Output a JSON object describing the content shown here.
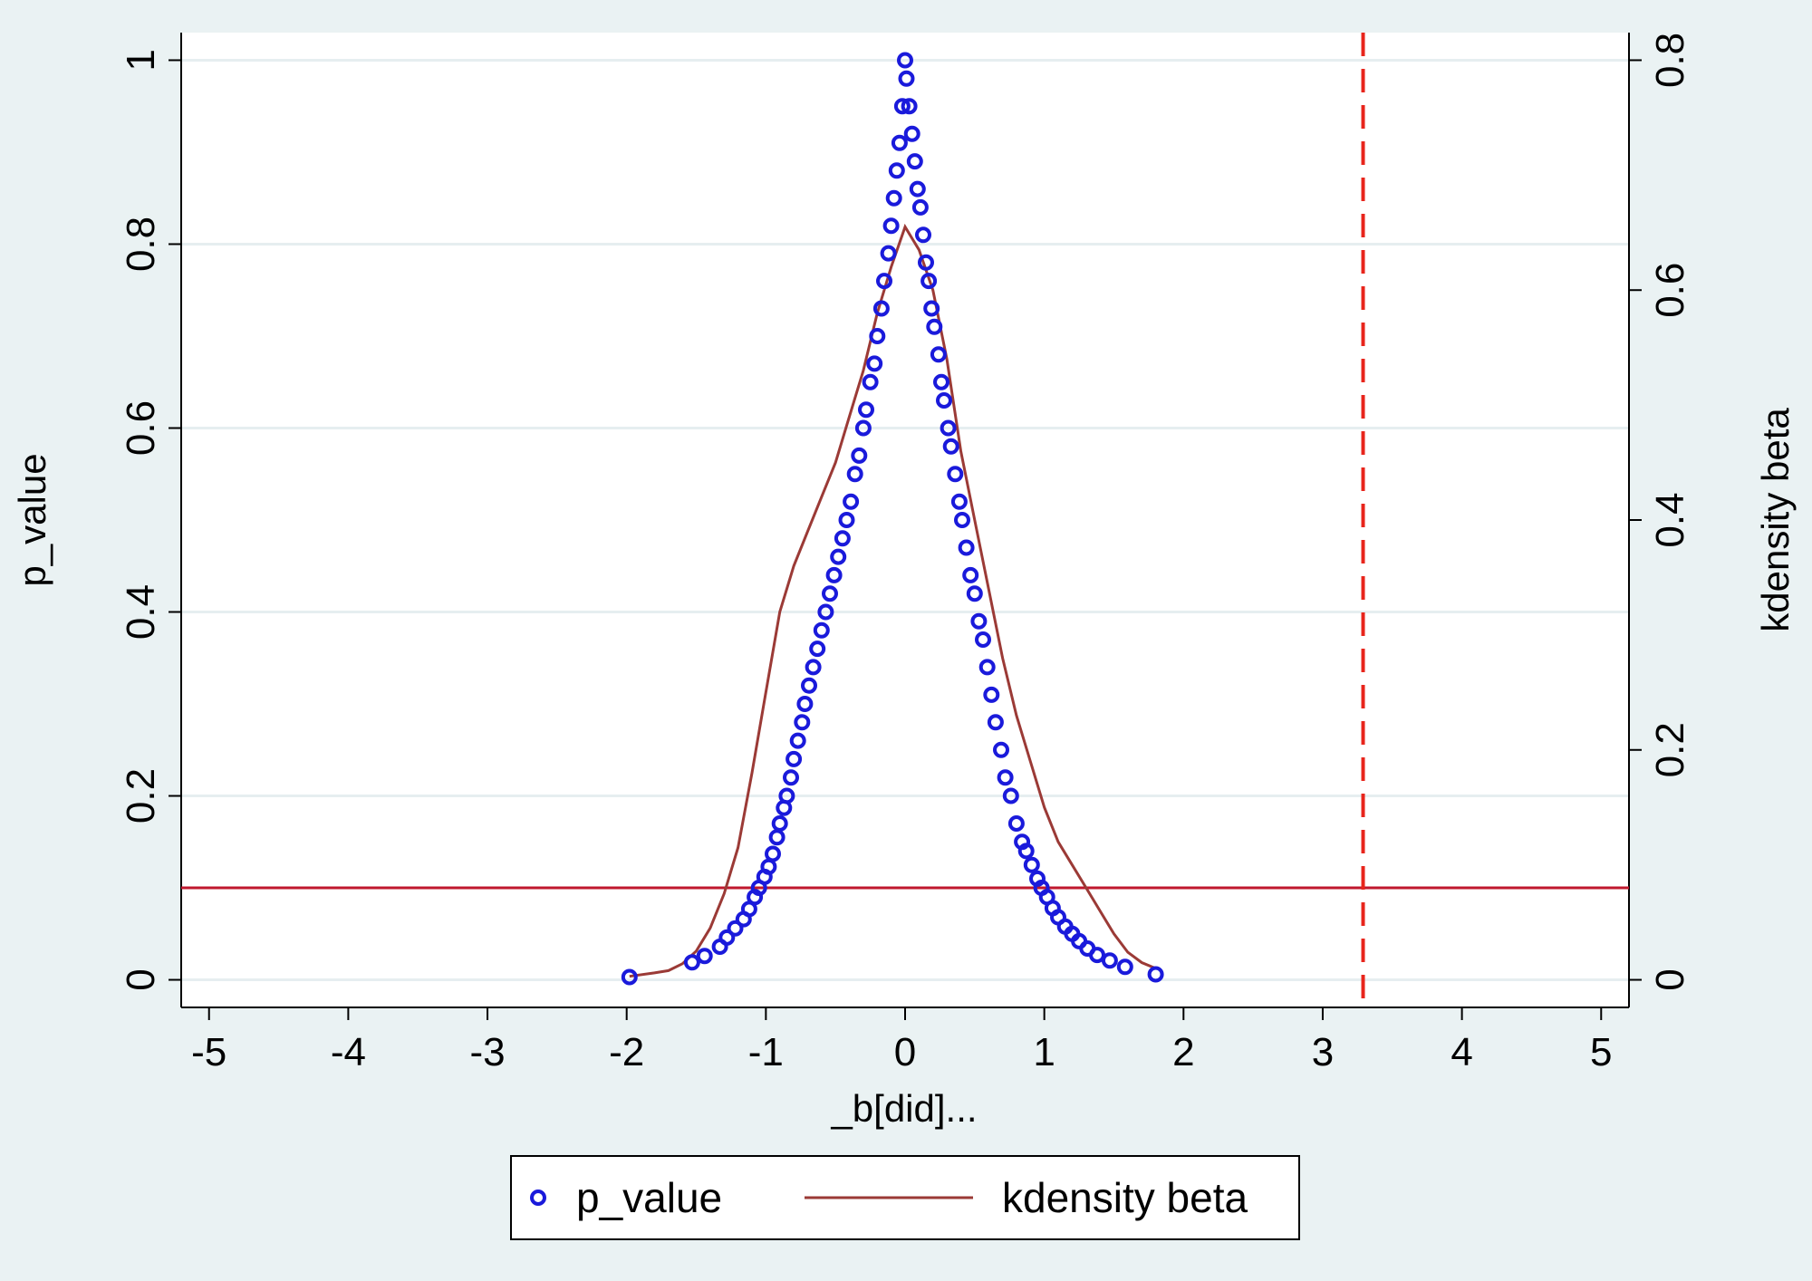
{
  "chart_data": {
    "type": "scatter",
    "xlabel": "_b[did]...",
    "ylabel_left": "p_value",
    "ylabel_right": "kdensity beta",
    "xlim": [
      -5.2,
      5.2
    ],
    "ylim_left": [
      -0.03,
      1.03
    ],
    "ylim_right": [
      -0.024,
      0.824
    ],
    "x_ticks": [
      -5,
      -4,
      -3,
      -2,
      -1,
      0,
      1,
      2,
      3,
      4,
      5
    ],
    "x_tick_labels": [
      "-5",
      "-4",
      "-3",
      "-2",
      "-1",
      "0",
      "1",
      "2",
      "3",
      "4",
      "5"
    ],
    "y_left_ticks": [
      0,
      0.2,
      0.4,
      0.6,
      0.8,
      1
    ],
    "y_left_tick_labels": [
      "0",
      "0.2",
      "0.4",
      "0.6",
      "0.8",
      "1"
    ],
    "y_right_ticks": [
      0,
      0.2,
      0.4,
      0.6,
      0.8
    ],
    "y_right_tick_labels": [
      "0",
      "0.2",
      "0.4",
      "0.6",
      "0.8"
    ],
    "grid": true,
    "reference_lines": {
      "horizontal_p": 0.1,
      "vertical_x": 3.29
    },
    "series": [
      {
        "name": "p_value",
        "kind": "scatter",
        "axis": "left",
        "color": "#1a1adb",
        "points": [
          [
            -1.98,
            0.003
          ],
          [
            -1.53,
            0.019
          ],
          [
            -1.44,
            0.026
          ],
          [
            -1.33,
            0.036
          ],
          [
            -1.28,
            0.046
          ],
          [
            -1.22,
            0.056
          ],
          [
            -1.16,
            0.066
          ],
          [
            -1.12,
            0.077
          ],
          [
            -1.08,
            0.09
          ],
          [
            -1.05,
            0.1
          ],
          [
            -1.01,
            0.112
          ],
          [
            -0.98,
            0.123
          ],
          [
            -0.95,
            0.137
          ],
          [
            -0.92,
            0.155
          ],
          [
            -0.9,
            0.17
          ],
          [
            -0.87,
            0.187
          ],
          [
            -0.85,
            0.2
          ],
          [
            -0.82,
            0.22
          ],
          [
            -0.8,
            0.24
          ],
          [
            -0.77,
            0.26
          ],
          [
            -0.74,
            0.28
          ],
          [
            -0.72,
            0.3
          ],
          [
            -0.69,
            0.32
          ],
          [
            -0.66,
            0.34
          ],
          [
            -0.63,
            0.36
          ],
          [
            -0.6,
            0.38
          ],
          [
            -0.57,
            0.4
          ],
          [
            -0.54,
            0.42
          ],
          [
            -0.51,
            0.44
          ],
          [
            -0.48,
            0.46
          ],
          [
            -0.45,
            0.48
          ],
          [
            -0.42,
            0.5
          ],
          [
            -0.39,
            0.52
          ],
          [
            -0.36,
            0.55
          ],
          [
            -0.33,
            0.57
          ],
          [
            -0.3,
            0.6
          ],
          [
            -0.28,
            0.62
          ],
          [
            -0.25,
            0.65
          ],
          [
            -0.22,
            0.67
          ],
          [
            -0.2,
            0.7
          ],
          [
            -0.17,
            0.73
          ],
          [
            -0.15,
            0.76
          ],
          [
            -0.12,
            0.79
          ],
          [
            -0.1,
            0.82
          ],
          [
            -0.08,
            0.85
          ],
          [
            -0.06,
            0.88
          ],
          [
            -0.04,
            0.91
          ],
          [
            -0.02,
            0.95
          ],
          [
            0.0,
            1.0
          ],
          [
            0.01,
            0.98
          ],
          [
            0.03,
            0.95
          ],
          [
            0.05,
            0.92
          ],
          [
            0.07,
            0.89
          ],
          [
            0.09,
            0.86
          ],
          [
            0.11,
            0.84
          ],
          [
            0.13,
            0.81
          ],
          [
            0.15,
            0.78
          ],
          [
            0.17,
            0.76
          ],
          [
            0.19,
            0.73
          ],
          [
            0.21,
            0.71
          ],
          [
            0.24,
            0.68
          ],
          [
            0.26,
            0.65
          ],
          [
            0.28,
            0.63
          ],
          [
            0.31,
            0.6
          ],
          [
            0.33,
            0.58
          ],
          [
            0.36,
            0.55
          ],
          [
            0.39,
            0.52
          ],
          [
            0.41,
            0.5
          ],
          [
            0.44,
            0.47
          ],
          [
            0.47,
            0.44
          ],
          [
            0.5,
            0.42
          ],
          [
            0.53,
            0.39
          ],
          [
            0.56,
            0.37
          ],
          [
            0.59,
            0.34
          ],
          [
            0.62,
            0.31
          ],
          [
            0.65,
            0.28
          ],
          [
            0.69,
            0.25
          ],
          [
            0.72,
            0.22
          ],
          [
            0.76,
            0.2
          ],
          [
            0.8,
            0.17
          ],
          [
            0.84,
            0.15
          ],
          [
            0.87,
            0.14
          ],
          [
            0.91,
            0.125
          ],
          [
            0.95,
            0.11
          ],
          [
            0.98,
            0.1
          ],
          [
            1.02,
            0.09
          ],
          [
            1.06,
            0.078
          ],
          [
            1.1,
            0.068
          ],
          [
            1.15,
            0.058
          ],
          [
            1.2,
            0.05
          ],
          [
            1.25,
            0.042
          ],
          [
            1.31,
            0.034
          ],
          [
            1.38,
            0.027
          ],
          [
            1.47,
            0.021
          ],
          [
            1.58,
            0.014
          ],
          [
            1.8,
            0.006
          ]
        ]
      },
      {
        "name": "kdensity beta",
        "kind": "line",
        "axis": "right",
        "color": "#9b3a36",
        "points": [
          [
            -1.98,
            0.003
          ],
          [
            -1.8,
            0.006
          ],
          [
            -1.7,
            0.008
          ],
          [
            -1.6,
            0.014
          ],
          [
            -1.5,
            0.025
          ],
          [
            -1.4,
            0.045
          ],
          [
            -1.3,
            0.075
          ],
          [
            -1.2,
            0.115
          ],
          [
            -1.1,
            0.18
          ],
          [
            -1.0,
            0.25
          ],
          [
            -0.9,
            0.32
          ],
          [
            -0.8,
            0.36
          ],
          [
            -0.7,
            0.39
          ],
          [
            -0.6,
            0.42
          ],
          [
            -0.5,
            0.45
          ],
          [
            -0.4,
            0.49
          ],
          [
            -0.3,
            0.53
          ],
          [
            -0.2,
            0.58
          ],
          [
            -0.1,
            0.62
          ],
          [
            0.0,
            0.655
          ],
          [
            0.05,
            0.645
          ],
          [
            0.1,
            0.635
          ],
          [
            0.2,
            0.6
          ],
          [
            0.3,
            0.54
          ],
          [
            0.4,
            0.46
          ],
          [
            0.5,
            0.4
          ],
          [
            0.6,
            0.34
          ],
          [
            0.7,
            0.28
          ],
          [
            0.8,
            0.23
          ],
          [
            0.9,
            0.19
          ],
          [
            1.0,
            0.15
          ],
          [
            1.1,
            0.12
          ],
          [
            1.2,
            0.1
          ],
          [
            1.3,
            0.08
          ],
          [
            1.4,
            0.06
          ],
          [
            1.5,
            0.04
          ],
          [
            1.6,
            0.024
          ],
          [
            1.7,
            0.015
          ],
          [
            1.8,
            0.01
          ]
        ]
      }
    ],
    "legend": {
      "position": "bottom-center",
      "entries": [
        {
          "label": "p_value",
          "marker": "hollow-circle",
          "color": "#1a1adb"
        },
        {
          "label": "kdensity beta",
          "marker": "line",
          "color": "#9b3a36"
        }
      ]
    },
    "colors": {
      "background": "#eaf2f3",
      "plot_area": "#ffffff",
      "grid": "#e6eef0",
      "p_threshold_line": "#c0182e",
      "actual_estimate_line": "#e8251c"
    }
  }
}
